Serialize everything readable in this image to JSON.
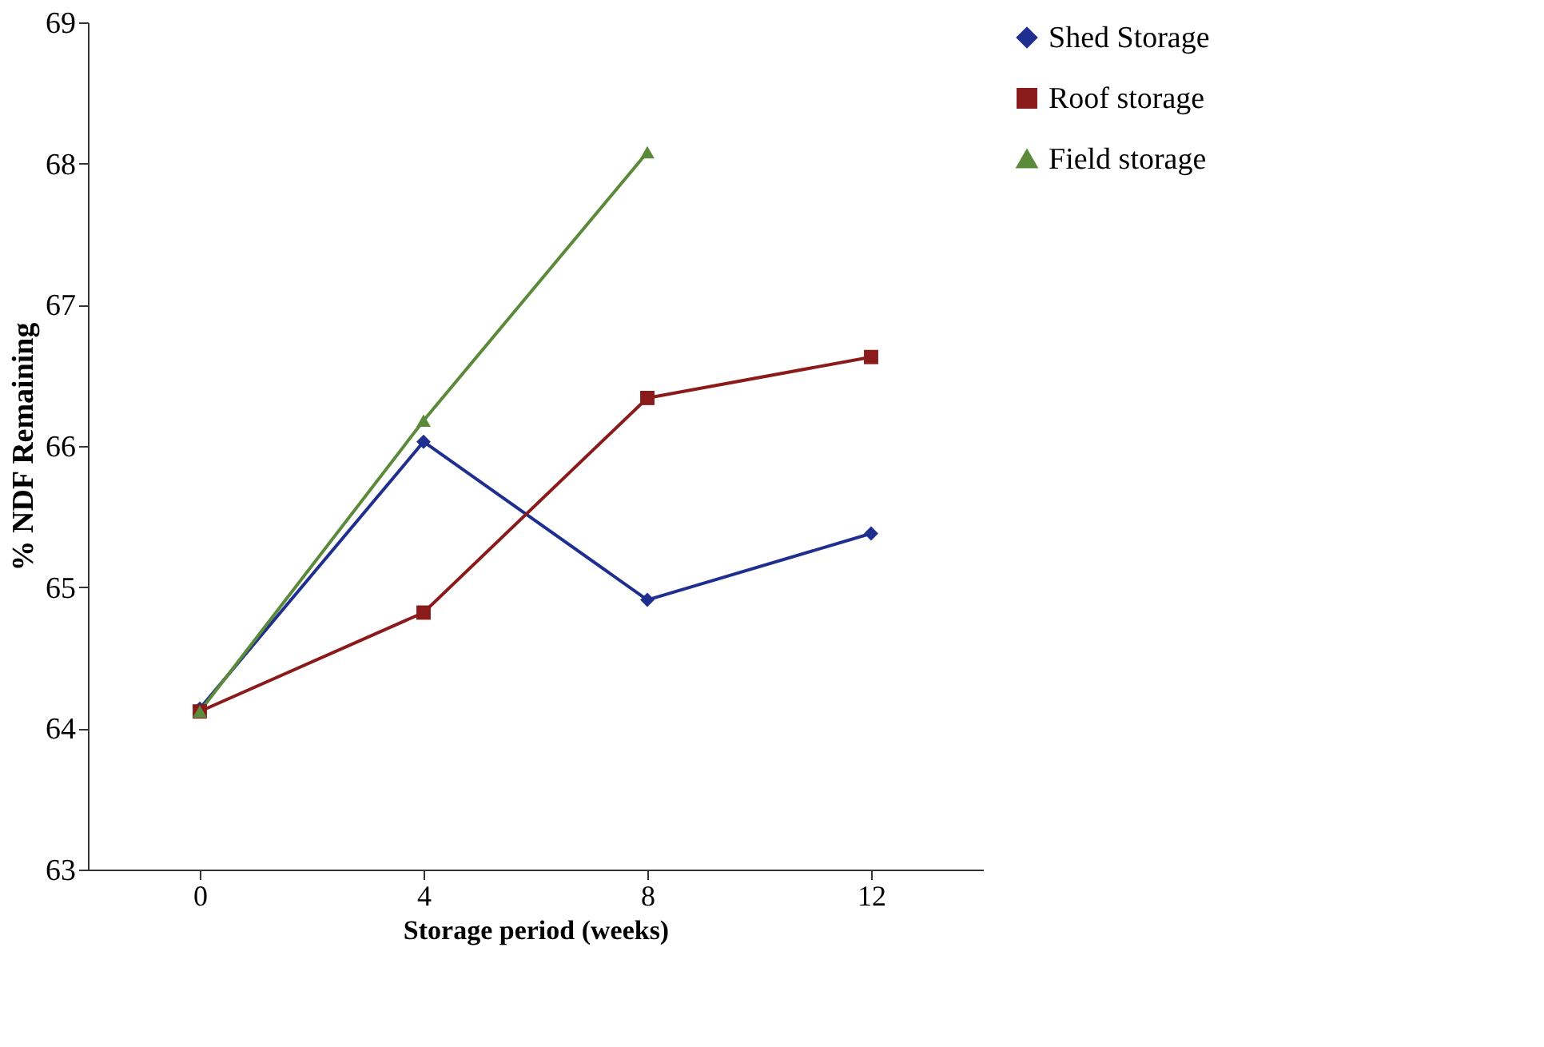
{
  "chart_data": {
    "type": "line",
    "xlabel": "Storage period (weeks)",
    "ylabel": "% NDF  Remaining",
    "categories": [
      "0",
      "4",
      "8",
      "12"
    ],
    "series": [
      {
        "name": "Shed Storage",
        "color": "#1f2f8f",
        "marker": "diamond",
        "values": [
          64.14,
          66.03,
          64.91,
          65.38
        ]
      },
      {
        "name": "Roof storage",
        "color": "#8b1a1a",
        "marker": "square",
        "values": [
          64.12,
          64.82,
          66.34,
          66.63
        ]
      },
      {
        "name": "Field storage",
        "color": "#5a8a3a",
        "marker": "triangle",
        "values": [
          64.12,
          66.18,
          68.08,
          null
        ]
      }
    ],
    "ylim": [
      63,
      69
    ],
    "yticks": [
      63,
      64,
      65,
      66,
      67,
      68,
      69
    ],
    "grid": false,
    "legend": "right",
    "line_style": "solid"
  }
}
